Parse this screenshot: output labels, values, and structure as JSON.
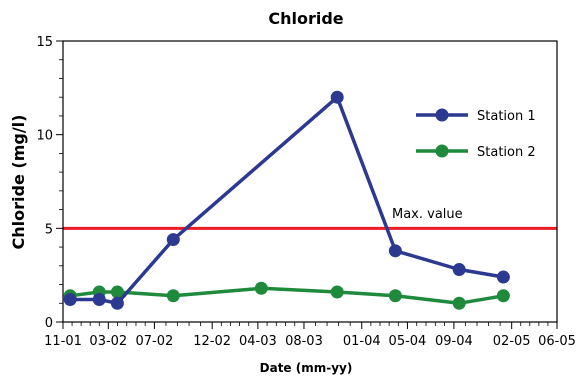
{
  "chart_data": {
    "type": "line",
    "title": "Chloride",
    "xlabel": "Date (mm-yy)",
    "ylabel": "Chloride (mg/l)",
    "x_ticks": [
      "11-01",
      "03-02",
      "07-02",
      "12-02",
      "04-03",
      "08-03",
      "01-04",
      "05-04",
      "09-04",
      "02-05",
      "06-05"
    ],
    "y_ticks": [
      0,
      5,
      10,
      15
    ],
    "ylim": [
      0,
      15
    ],
    "grid": false,
    "legend_position": "top-right",
    "series": [
      {
        "name": "Station 1",
        "color": "#2b3990",
        "points": [
          {
            "x": "2001-11-20",
            "y": 1.2
          },
          {
            "x": "2002-02-05",
            "y": 1.2
          },
          {
            "x": "2002-03-25",
            "y": 1.0
          },
          {
            "x": "2002-08-20",
            "y": 4.4
          },
          {
            "x": "2003-10-28",
            "y": 12.0
          },
          {
            "x": "2004-03-30",
            "y": 3.8
          },
          {
            "x": "2004-09-15",
            "y": 2.8
          },
          {
            "x": "2005-01-10",
            "y": 2.4
          }
        ]
      },
      {
        "name": "Station 2",
        "color": "#1f8a3c",
        "points": [
          {
            "x": "2001-11-20",
            "y": 1.4
          },
          {
            "x": "2002-02-05",
            "y": 1.6
          },
          {
            "x": "2002-03-25",
            "y": 1.6
          },
          {
            "x": "2002-08-20",
            "y": 1.4
          },
          {
            "x": "2003-04-10",
            "y": 1.8
          },
          {
            "x": "2003-10-28",
            "y": 1.6
          },
          {
            "x": "2004-03-30",
            "y": 1.4
          },
          {
            "x": "2004-09-15",
            "y": 1.0
          },
          {
            "x": "2005-01-10",
            "y": 1.4
          }
        ]
      }
    ],
    "reference_line": {
      "label": "Max. value",
      "y": 5,
      "color": "#ee1c25"
    }
  }
}
